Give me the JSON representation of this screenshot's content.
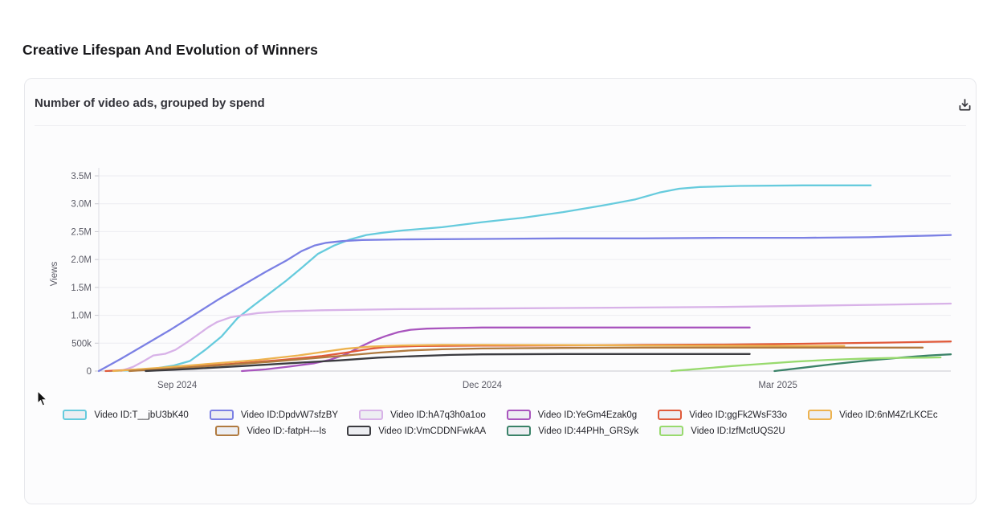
{
  "page": {
    "title": "Creative Lifespan And Evolution of Winners"
  },
  "card": {
    "header": "Number of video ads, grouped by spend"
  },
  "icons": {
    "download": "download-icon",
    "cursor": "mouse-cursor"
  },
  "chart_data": {
    "type": "line",
    "title": "Number of video ads, grouped by spend",
    "xlabel": "",
    "ylabel": "Views",
    "ylim": [
      0,
      3500000
    ],
    "grid": "horizontal only",
    "legend_position": "bottom",
    "legend_rows": [
      6,
      4
    ],
    "x_axis_note": "time axis normalized 0-1 across plot (approx Aug 2024 - Apr 2025)",
    "x_ticks": [
      {
        "label": "Sep 2024",
        "pos": 0.092
      },
      {
        "label": "Dec 2024",
        "pos": 0.45
      },
      {
        "label": "Mar 2025",
        "pos": 0.797
      }
    ],
    "y_ticks": [
      {
        "label": "0",
        "value": 0
      },
      {
        "label": "500k",
        "value": 500000
      },
      {
        "label": "1.0M",
        "value": 1000000
      },
      {
        "label": "1.5M",
        "value": 1500000
      },
      {
        "label": "2.0M",
        "value": 2000000
      },
      {
        "label": "2.5M",
        "value": 2500000
      },
      {
        "label": "3.0M",
        "value": 3000000
      },
      {
        "label": "3.5M",
        "value": 3500000
      }
    ],
    "series": [
      {
        "name": "Video ID:T__jbU3bK40",
        "color": "#66cbdd",
        "points": [
          [
            0.012,
            0
          ],
          [
            0.055,
            20000
          ],
          [
            0.088,
            100000
          ],
          [
            0.107,
            180000
          ],
          [
            0.125,
            380000
          ],
          [
            0.144,
            620000
          ],
          [
            0.163,
            950000
          ],
          [
            0.182,
            1180000
          ],
          [
            0.201,
            1400000
          ],
          [
            0.22,
            1620000
          ],
          [
            0.238,
            1850000
          ],
          [
            0.257,
            2100000
          ],
          [
            0.276,
            2250000
          ],
          [
            0.295,
            2360000
          ],
          [
            0.314,
            2440000
          ],
          [
            0.333,
            2480000
          ],
          [
            0.356,
            2520000
          ],
          [
            0.403,
            2580000
          ],
          [
            0.45,
            2670000
          ],
          [
            0.498,
            2750000
          ],
          [
            0.545,
            2850000
          ],
          [
            0.592,
            2970000
          ],
          [
            0.63,
            3080000
          ],
          [
            0.658,
            3200000
          ],
          [
            0.681,
            3270000
          ],
          [
            0.705,
            3300000
          ],
          [
            0.752,
            3320000
          ],
          [
            0.827,
            3330000
          ],
          [
            0.906,
            3330000
          ]
        ]
      },
      {
        "name": "Video ID:DpdvW7sfzBY",
        "color": "#7b80e4",
        "points": [
          [
            0,
            0
          ],
          [
            0.026,
            220000
          ],
          [
            0.055,
            480000
          ],
          [
            0.083,
            730000
          ],
          [
            0.111,
            1000000
          ],
          [
            0.139,
            1270000
          ],
          [
            0.168,
            1530000
          ],
          [
            0.196,
            1780000
          ],
          [
            0.22,
            1980000
          ],
          [
            0.238,
            2150000
          ],
          [
            0.253,
            2250000
          ],
          [
            0.267,
            2300000
          ],
          [
            0.286,
            2330000
          ],
          [
            0.309,
            2350000
          ],
          [
            0.356,
            2360000
          ],
          [
            0.45,
            2370000
          ],
          [
            0.545,
            2380000
          ],
          [
            0.639,
            2380000
          ],
          [
            0.733,
            2390000
          ],
          [
            0.827,
            2390000
          ],
          [
            0.903,
            2400000
          ],
          [
            0.95,
            2420000
          ],
          [
            0.978,
            2430000
          ],
          [
            1,
            2440000
          ]
        ]
      },
      {
        "name": "Video ID:hA7q3h0a1oo",
        "color": "#d8b2e8",
        "points": [
          [
            0.026,
            0
          ],
          [
            0.041,
            80000
          ],
          [
            0.053,
            180000
          ],
          [
            0.064,
            280000
          ],
          [
            0.078,
            310000
          ],
          [
            0.09,
            380000
          ],
          [
            0.104,
            520000
          ],
          [
            0.116,
            650000
          ],
          [
            0.128,
            780000
          ],
          [
            0.139,
            880000
          ],
          [
            0.154,
            960000
          ],
          [
            0.168,
            1000000
          ],
          [
            0.187,
            1040000
          ],
          [
            0.215,
            1070000
          ],
          [
            0.262,
            1090000
          ],
          [
            0.356,
            1110000
          ],
          [
            0.45,
            1120000
          ],
          [
            0.545,
            1130000
          ],
          [
            0.639,
            1140000
          ],
          [
            0.733,
            1150000
          ],
          [
            0.827,
            1170000
          ],
          [
            0.922,
            1190000
          ],
          [
            1,
            1210000
          ]
        ]
      },
      {
        "name": "Video ID:YeGm4Ezak0g",
        "color": "#a955be",
        "points": [
          [
            0.168,
            0
          ],
          [
            0.196,
            30000
          ],
          [
            0.224,
            80000
          ],
          [
            0.253,
            140000
          ],
          [
            0.271,
            200000
          ],
          [
            0.29,
            300000
          ],
          [
            0.309,
            450000
          ],
          [
            0.323,
            550000
          ],
          [
            0.337,
            630000
          ],
          [
            0.352,
            700000
          ],
          [
            0.366,
            740000
          ],
          [
            0.385,
            760000
          ],
          [
            0.413,
            770000
          ],
          [
            0.45,
            780000
          ],
          [
            0.545,
            780000
          ],
          [
            0.639,
            780000
          ],
          [
            0.764,
            780000
          ]
        ]
      },
      {
        "name": "Video ID:ggFk2WsF33o",
        "color": "#e05a3a",
        "points": [
          [
            0.008,
            0
          ],
          [
            0.074,
            50000
          ],
          [
            0.149,
            120000
          ],
          [
            0.215,
            200000
          ],
          [
            0.262,
            270000
          ],
          [
            0.29,
            330000
          ],
          [
            0.319,
            400000
          ],
          [
            0.337,
            430000
          ],
          [
            0.375,
            450000
          ],
          [
            0.45,
            455000
          ],
          [
            0.545,
            460000
          ],
          [
            0.639,
            470000
          ],
          [
            0.733,
            475000
          ],
          [
            0.827,
            490000
          ],
          [
            0.922,
            510000
          ],
          [
            1,
            530000
          ]
        ]
      },
      {
        "name": "Video ID:6nM4ZrLKCEc",
        "color": "#edb24e",
        "points": [
          [
            0.017,
            0
          ],
          [
            0.074,
            60000
          ],
          [
            0.13,
            130000
          ],
          [
            0.187,
            200000
          ],
          [
            0.234,
            280000
          ],
          [
            0.262,
            340000
          ],
          [
            0.29,
            400000
          ],
          [
            0.319,
            440000
          ],
          [
            0.356,
            460000
          ],
          [
            0.403,
            470000
          ],
          [
            0.45,
            470000
          ],
          [
            0.545,
            465000
          ],
          [
            0.639,
            460000
          ],
          [
            0.733,
            455000
          ],
          [
            0.827,
            450000
          ],
          [
            0.875,
            450000
          ]
        ]
      },
      {
        "name": "Video ID:-fatpH---Is",
        "color": "#b07a3f",
        "points": [
          [
            0.036,
            0
          ],
          [
            0.092,
            50000
          ],
          [
            0.149,
            110000
          ],
          [
            0.205,
            170000
          ],
          [
            0.253,
            230000
          ],
          [
            0.29,
            280000
          ],
          [
            0.328,
            330000
          ],
          [
            0.366,
            370000
          ],
          [
            0.403,
            390000
          ],
          [
            0.45,
            405000
          ],
          [
            0.545,
            415000
          ],
          [
            0.639,
            420000
          ],
          [
            0.733,
            420000
          ],
          [
            0.827,
            420000
          ],
          [
            0.967,
            420000
          ]
        ]
      },
      {
        "name": "Video ID:VmCDDNFwkAA",
        "color": "#3b3b40",
        "points": [
          [
            0.055,
            0
          ],
          [
            0.111,
            40000
          ],
          [
            0.168,
            90000
          ],
          [
            0.224,
            140000
          ],
          [
            0.281,
            190000
          ],
          [
            0.328,
            240000
          ],
          [
            0.375,
            270000
          ],
          [
            0.413,
            290000
          ],
          [
            0.45,
            300000
          ],
          [
            0.545,
            305000
          ],
          [
            0.639,
            305000
          ],
          [
            0.764,
            305000
          ]
        ]
      },
      {
        "name": "Video ID:44PHh_GRSyk",
        "color": "#3a8268",
        "points": [
          [
            0.793,
            0
          ],
          [
            0.827,
            60000
          ],
          [
            0.865,
            130000
          ],
          [
            0.903,
            190000
          ],
          [
            0.941,
            240000
          ],
          [
            0.974,
            280000
          ],
          [
            1,
            300000
          ]
        ]
      },
      {
        "name": "Video ID:IzfMctUQS2U",
        "color": "#98da6e",
        "points": [
          [
            0.672,
            0
          ],
          [
            0.705,
            40000
          ],
          [
            0.743,
            90000
          ],
          [
            0.78,
            130000
          ],
          [
            0.818,
            170000
          ],
          [
            0.856,
            200000
          ],
          [
            0.894,
            220000
          ],
          [
            0.931,
            235000
          ],
          [
            0.969,
            240000
          ],
          [
            0.988,
            245000
          ]
        ]
      }
    ]
  }
}
